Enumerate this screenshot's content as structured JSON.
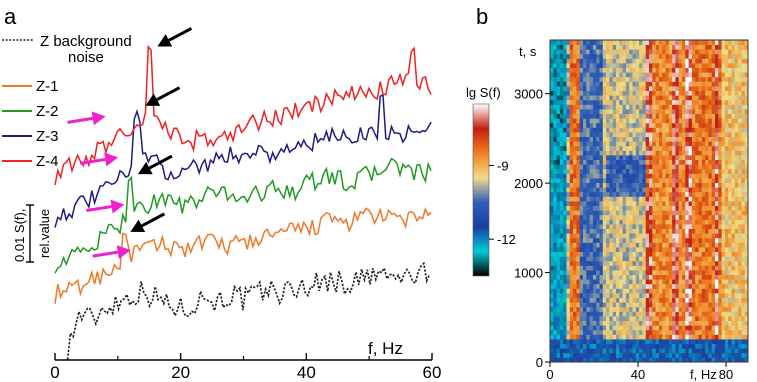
{
  "panels": {
    "a": "a",
    "b": "b"
  },
  "chart_data": [
    {
      "type": "line",
      "panel": "a",
      "xlabel": "f, Hz",
      "xlim": [
        0,
        60
      ],
      "xticks": [
        0,
        20,
        40,
        60
      ],
      "ylabel_lines": [
        "0.01 S(f),",
        "rel.value"
      ],
      "grid": false,
      "legend_position": "top-left",
      "arrow_colors": {
        "magenta": "#ee22cc",
        "black": "#000000"
      },
      "peak_arrows_magenta_hz": [
        9,
        11,
        12,
        13
      ],
      "peak_arrows_black_hz": [
        12,
        14,
        15
      ],
      "series": [
        {
          "name": "Z background noise",
          "legend_lines": [
            "Z background",
            "noise"
          ],
          "color": "#222222",
          "dashed": true,
          "x": [
            2,
            4,
            6,
            8,
            10,
            12,
            14,
            16,
            18,
            20,
            22,
            24,
            26,
            28,
            30,
            32,
            34,
            36,
            38,
            40,
            42,
            44,
            46,
            48,
            50,
            52,
            54,
            56,
            58,
            60
          ],
          "y": [
            0.5,
            2.8,
            2.3,
            3.2,
            3.5,
            3.9,
            4.2,
            3.8,
            3.4,
            3.0,
            3.4,
            3.9,
            3.5,
            4.0,
            3.6,
            4.0,
            4.3,
            4.1,
            4.3,
            4.6,
            4.7,
            5.0,
            4.6,
            4.9,
            5.1,
            5.3,
            5.0,
            5.1,
            5.3,
            5.2
          ]
        },
        {
          "name": "Z-1",
          "color": "#f07828",
          "x": [
            0,
            2,
            4,
            6,
            8,
            10,
            12,
            14,
            16,
            18,
            20,
            22,
            24,
            26,
            28,
            30,
            32,
            34,
            36,
            38,
            40,
            42,
            44,
            46,
            48,
            50,
            52,
            54,
            56,
            58,
            60
          ],
          "y": [
            4.0,
            4.2,
            4.5,
            5.0,
            5.4,
            6.0,
            6.6,
            6.9,
            7.2,
            7.2,
            7.0,
            7.2,
            7.4,
            7.3,
            7.2,
            7.4,
            7.6,
            7.8,
            8.0,
            8.1,
            8.3,
            8.6,
            8.9,
            8.7,
            8.8,
            9.4,
            8.9,
            9.0,
            8.9,
            9.2,
            9.6
          ]
        },
        {
          "name": "Z-2",
          "color": "#229922",
          "x": [
            0,
            2,
            4,
            6,
            8,
            10,
            12,
            14,
            16,
            18,
            20,
            22,
            24,
            26,
            28,
            30,
            32,
            34,
            36,
            38,
            40,
            42,
            44,
            46,
            48,
            50,
            52,
            54,
            56,
            58,
            60
          ],
          "y": [
            6.0,
            6.3,
            6.7,
            7.2,
            7.8,
            8.4,
            9.6,
            9.7,
            10.2,
            10.3,
            9.8,
            10.0,
            10.4,
            10.8,
            10.6,
            10.3,
            10.6,
            10.8,
            11.0,
            10.8,
            11.2,
            11.6,
            11.8,
            11.4,
            11.5,
            11.9,
            12.2,
            12.6,
            12.1,
            11.9,
            12.0
          ]
        },
        {
          "name": "Z-3",
          "color": "#1c1c88",
          "x": [
            0,
            2,
            4,
            6,
            8,
            10,
            12,
            14,
            16,
            18,
            20,
            22,
            24,
            26,
            28,
            30,
            32,
            34,
            36,
            38,
            40,
            42,
            44,
            46,
            48,
            50,
            52,
            54,
            56,
            58,
            60
          ],
          "y": [
            9.0,
            9.5,
            9.8,
            10.3,
            10.9,
            11.4,
            12.5,
            13.3,
            12.6,
            12.1,
            12.1,
            12.4,
            12.6,
            12.9,
            13.1,
            13.3,
            13.5,
            13.2,
            13.4,
            13.6,
            13.9,
            14.0,
            14.3,
            14.5,
            14.4,
            14.7,
            14.6,
            14.5,
            14.7,
            14.5,
            14.9
          ]
        },
        {
          "name": "Z-4",
          "color": "#ee2222",
          "x": [
            0,
            2,
            4,
            6,
            8,
            10,
            12,
            14,
            16,
            18,
            20,
            22,
            24,
            26,
            28,
            30,
            32,
            34,
            36,
            38,
            40,
            42,
            44,
            46,
            48,
            50,
            52,
            54,
            56,
            58,
            60
          ],
          "y": [
            11.8,
            12.3,
            12.8,
            13.2,
            13.8,
            14.4,
            15.0,
            15.4,
            15.3,
            14.7,
            14.4,
            14.1,
            14.3,
            14.2,
            14.5,
            15.0,
            15.3,
            15.5,
            15.7,
            16.0,
            16.2,
            16.5,
            16.8,
            17.0,
            17.1,
            17.3,
            17.5,
            17.8,
            18.2,
            17.9,
            17.6
          ]
        }
      ],
      "peaks": [
        {
          "series": "Z-4",
          "x": 15,
          "y": 20.5
        },
        {
          "series": "Z-3",
          "x": 13,
          "y": 16.1
        },
        {
          "series": "Z-2",
          "x": 12,
          "y": 11.9
        },
        {
          "series": "Z-1",
          "x": 11,
          "y": 8.3
        },
        {
          "series": "Z-4",
          "x": 57,
          "y": 20.4
        },
        {
          "series": "Z-3",
          "x": 52,
          "y": 17.4
        }
      ]
    },
    {
      "type": "heatmap",
      "panel": "b",
      "xlabel": "f, Hz",
      "ylabel": "t, s",
      "xlim": [
        0,
        90
      ],
      "ylim": [
        0,
        3600
      ],
      "xticks": [
        0,
        40,
        80
      ],
      "yticks": [
        0,
        1000,
        2000,
        3000
      ],
      "colorbar": {
        "label": "lg S(f)",
        "ticks": [
          -9,
          -12
        ],
        "range": [
          -13.5,
          -6.5
        ],
        "stops": [
          "#000000",
          "#00c8d8",
          "#1840a0",
          "#3060b8",
          "#eedd88",
          "#f08020",
          "#c02010",
          "#ffffff"
        ]
      },
      "row_bands_hz": [
        {
          "f_lo": 0,
          "f_hi": 8,
          "lgS": -12.3
        },
        {
          "f_lo": 8,
          "f_hi": 14,
          "lgS": -9.8
        },
        {
          "f_lo": 14,
          "f_hi": 24,
          "lgS": -10.5
        },
        {
          "f_lo": 24,
          "f_hi": 44,
          "lgS": -9.6
        },
        {
          "f_lo": 44,
          "f_hi": 62,
          "lgS": -8.6
        },
        {
          "f_lo": 62,
          "f_hi": 78,
          "lgS": -8.4
        },
        {
          "f_lo": 78,
          "f_hi": 90,
          "lgS": -9.2
        }
      ],
      "bright_lines_hz": [
        10,
        12,
        45,
        57,
        62,
        64,
        76
      ],
      "low_time_band_s": [
        0,
        250
      ]
    }
  ]
}
